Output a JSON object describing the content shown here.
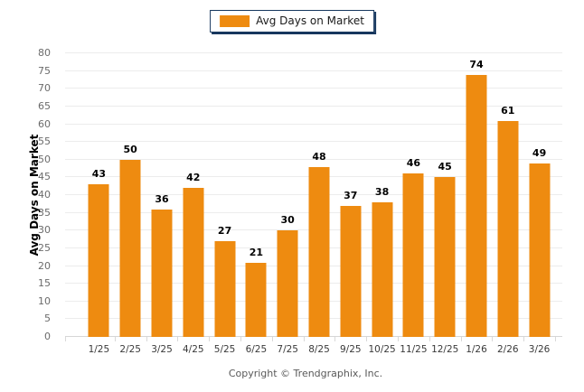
{
  "legend": {
    "label": "Avg Days on Market"
  },
  "y_axis_title": "Avg Days on Market",
  "footer": {
    "copyright": "Copyright © Trendgraphix, Inc."
  },
  "colors": {
    "bar": "#EE8B10",
    "legend_border": "#17375E",
    "gridline": "#ECECEC",
    "baseline": "#D6D6D6",
    "tick": "#D9D9D9",
    "y_tick_label": "#6B6B6B",
    "x_tick_label": "#3A3A3A",
    "value_label": "#000000",
    "copyright_text": "#595959"
  },
  "chart_data": {
    "type": "bar",
    "title": "Avg Days on Market",
    "series_name": "Avg Days on Market",
    "categories": [
      "1/25",
      "2/25",
      "3/25",
      "4/25",
      "5/25",
      "6/25",
      "7/25",
      "8/25",
      "9/25",
      "10/25",
      "11/25",
      "12/25",
      "1/26",
      "2/26",
      "3/26"
    ],
    "values": [
      43,
      50,
      36,
      42,
      27,
      21,
      30,
      48,
      37,
      38,
      46,
      45,
      74,
      61,
      49
    ],
    "xlabel": "",
    "ylabel": "Avg Days on Market",
    "ylim": [
      0,
      80
    ],
    "yticks": [
      0,
      5,
      10,
      15,
      20,
      25,
      30,
      35,
      40,
      45,
      50,
      55,
      60,
      65,
      70,
      75,
      80
    ],
    "grid": true,
    "value_labels": true,
    "legend_position": "top-center",
    "bar_color": "#EE8B10"
  }
}
